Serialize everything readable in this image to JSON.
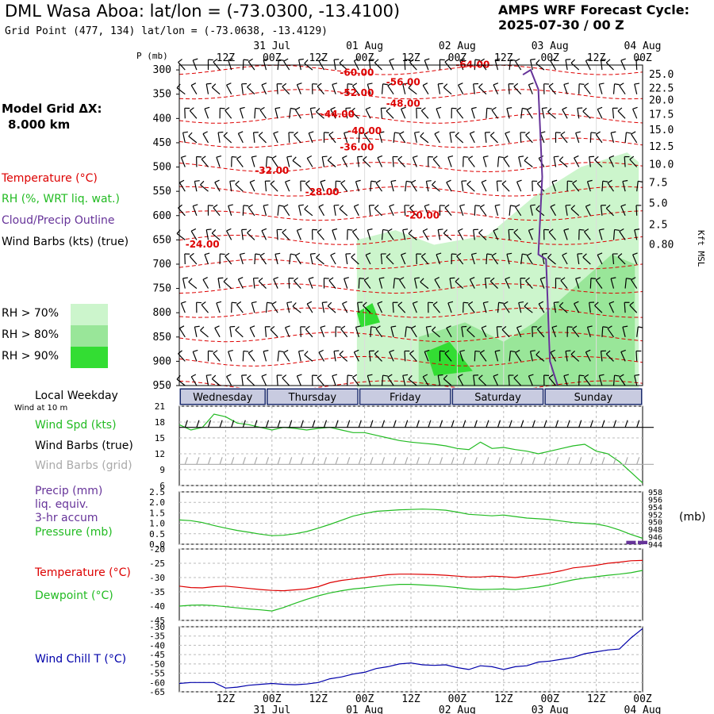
{
  "header": {
    "title": "DML Wasa Aboa:  lat/lon = (-73.0300, -13.4100)",
    "grid_point": "Grid Point (477, 134) lat/lon = (-73.0638, -13.4129)",
    "cycle_line1": "AMPS WRF Forecast Cycle:",
    "cycle_line2": "2025-07-30 / 00  Z"
  },
  "sidebar": {
    "model_grid_label": "Model Grid ΔX:",
    "model_grid_value": "8.000 km",
    "legend_temperature": "Temperature (°C)",
    "legend_rh": "RH (%, WRT liq. wat.)",
    "legend_cloud": "Cloud/Precip Outline",
    "legend_wind": "Wind Barbs (kts) (true)",
    "rh_levels": [
      {
        "label": "RH > 70%",
        "color": "#ccf5cc"
      },
      {
        "label": "RH > 80%",
        "color": "#99e699"
      },
      {
        "label": "RH > 90%",
        "color": "#33dd33"
      }
    ],
    "local_weekday": "Local Weekday",
    "wind_at_10m": "Wind at 10 m",
    "wind_spd_label": "Wind Spd (kts)",
    "wind_barbs_true": "Wind Barbs (true)",
    "wind_barbs_grid": "Wind Barbs (grid)",
    "precip_l1": "Precip (mm)",
    "precip_l2": "liq. equiv.",
    "precip_l3": "3-hr accum",
    "pressure_label": "Pressure (mb)",
    "pressure_unit": "(mb)",
    "temperature_label": "Temperature (°C)",
    "dewpoint_label": "Dewpoint (°C)",
    "wind_chill_label": "Wind Chill T (°C)"
  },
  "colors": {
    "temperature": "#dd0000",
    "rh": "#22bb22",
    "cloud": "#663399",
    "wind_chill": "#0000aa",
    "grid_barbs": "#aaaaaa",
    "weekday_bar": "#1a2a6c"
  },
  "chart_data": [
    {
      "type": "heatmap",
      "title": "Time-height cross section",
      "ylabel": "P (mb)",
      "y2label": "Kft MSL",
      "x_hours": [
        0,
        120
      ],
      "x_top_ticks": [
        "12Z",
        "00Z",
        "12Z",
        "00Z",
        "12Z",
        "00Z",
        "12Z",
        "00Z",
        "12Z",
        "00Z"
      ],
      "x_top_dates": [
        {
          "label": "31 Jul",
          "hour": 24
        },
        {
          "label": "01 Aug",
          "hour": 48
        },
        {
          "label": "02 Aug",
          "hour": 72
        },
        {
          "label": "03 Aug",
          "hour": 96
        },
        {
          "label": "04 Aug",
          "hour": 120
        }
      ],
      "pressure_levels": [
        300,
        350,
        400,
        450,
        500,
        550,
        600,
        650,
        700,
        750,
        800,
        850,
        900,
        950
      ],
      "ylim": [
        950,
        290
      ],
      "height_kft": [
        {
          "label": "25.0",
          "p": 310
        },
        {
          "label": "22.5",
          "p": 338
        },
        {
          "label": "20.0",
          "p": 363
        },
        {
          "label": "17.5",
          "p": 392
        },
        {
          "label": "15.0",
          "p": 424
        },
        {
          "label": "12.5",
          "p": 458
        },
        {
          "label": "10.0",
          "p": 495
        },
        {
          "label": "7.5",
          "p": 533
        },
        {
          "label": "5.0",
          "p": 575
        },
        {
          "label": "2.5",
          "p": 619
        },
        {
          "label": "0.80",
          "p": 660
        }
      ],
      "temperature_contours": [
        {
          "label": "-64.00",
          "hour": 76.0,
          "p": 296
        },
        {
          "label": "-60.00",
          "hour": 46.0,
          "p": 312
        },
        {
          "label": "-56.00",
          "hour": 58.0,
          "p": 332
        },
        {
          "label": "-52.00",
          "hour": 46.0,
          "p": 354
        },
        {
          "label": "-48.00",
          "hour": 58.0,
          "p": 376
        },
        {
          "label": "-44.00",
          "hour": 41.0,
          "p": 398
        },
        {
          "label": "-40.00",
          "hour": 48.0,
          "p": 432
        },
        {
          "label": "-36.00",
          "hour": 46.0,
          "p": 466
        },
        {
          "label": "-32.00",
          "hour": 24.0,
          "p": 514
        },
        {
          "label": "-28.00",
          "hour": 37.0,
          "p": 558
        },
        {
          "label": "-20.00",
          "hour": 63.0,
          "p": 606
        },
        {
          "label": "-24.00",
          "hour": 6.0,
          "p": 666
        }
      ],
      "rh_regions": [
        {
          "level": 70,
          "points": [
            [
              46,
              650
            ],
            [
              56,
              630
            ],
            [
              66,
              660
            ],
            [
              80,
              640
            ],
            [
              92,
              560
            ],
            [
              104,
              500
            ],
            [
              116,
              470
            ],
            [
              119,
              490
            ],
            [
              119,
              955
            ],
            [
              46,
              955
            ]
          ]
        },
        {
          "level": 80,
          "points": [
            [
              62,
              850
            ],
            [
              74,
              820
            ],
            [
              84,
              860
            ],
            [
              92,
              820
            ],
            [
              102,
              750
            ],
            [
              112,
              680
            ],
            [
              118,
              700
            ],
            [
              118,
              950
            ],
            [
              62,
              950
            ]
          ]
        },
        {
          "level": 90,
          "points": [
            [
              64,
              880
            ],
            [
              70,
              860
            ],
            [
              76,
              920
            ],
            [
              66,
              930
            ]
          ]
        },
        {
          "level": 90,
          "points": [
            [
              46,
              800
            ],
            [
              50,
              780
            ],
            [
              52,
              820
            ],
            [
              47,
              830
            ]
          ]
        }
      ],
      "cloud_outline": [
        [
          89,
          310
        ],
        [
          91,
          300
        ],
        [
          93,
          340
        ],
        [
          94,
          520
        ],
        [
          93,
          680
        ],
        [
          95,
          690
        ],
        [
          96,
          900
        ],
        [
          98,
          950
        ]
      ]
    },
    {
      "type": "line",
      "title": "Wind Spd (kts)",
      "ylim": [
        6,
        21
      ],
      "y_ticks": [
        6,
        9,
        12,
        15,
        18,
        21
      ],
      "x_hours": [
        0,
        3,
        6,
        9,
        12,
        15,
        18,
        21,
        24,
        27,
        30,
        33,
        36,
        39,
        42,
        45,
        48,
        51,
        54,
        57,
        60,
        63,
        66,
        69,
        72,
        75,
        78,
        81,
        84,
        87,
        90,
        93,
        96,
        99,
        102,
        105,
        108,
        111,
        114,
        117,
        120
      ],
      "series": [
        {
          "name": "Wind Spd (kts)",
          "color": "#22bb22",
          "values": [
            17.5,
            16.5,
            17.0,
            19.5,
            19.0,
            17.8,
            17.5,
            17.0,
            16.5,
            17.0,
            16.8,
            16.5,
            16.8,
            17.0,
            16.5,
            16.0,
            16.0,
            15.5,
            15.0,
            14.5,
            14.2,
            14.0,
            13.8,
            13.5,
            13.0,
            12.8,
            14.2,
            13.0,
            13.2,
            12.8,
            12.5,
            12.0,
            12.5,
            13.0,
            13.5,
            13.8,
            12.5,
            12.0,
            10.5,
            8.5,
            6.5
          ]
        }
      ]
    },
    {
      "type": "line",
      "title": "Precip / Pressure",
      "ylim": [
        0,
        2.5
      ],
      "y_ticks": [
        0.0,
        0.5,
        1.0,
        1.5,
        2.0,
        2.5
      ],
      "y2_ticks": [
        944,
        946,
        948,
        950,
        952,
        954,
        956,
        958
      ],
      "x_hours": [
        0,
        3,
        6,
        9,
        12,
        15,
        18,
        21,
        24,
        27,
        30,
        33,
        36,
        39,
        42,
        45,
        48,
        51,
        54,
        57,
        60,
        63,
        66,
        69,
        72,
        75,
        78,
        81,
        84,
        87,
        90,
        93,
        96,
        99,
        102,
        105,
        108,
        111,
        114,
        117,
        120
      ],
      "series": [
        {
          "name": "Pressure (mb)",
          "color": "#22bb22",
          "values": [
            950.5,
            950.3,
            949.8,
            949.0,
            948.3,
            947.7,
            947.2,
            946.7,
            946.3,
            946.4,
            946.8,
            947.4,
            948.3,
            949.3,
            950.4,
            951.5,
            952.2,
            952.8,
            953.0,
            953.2,
            953.3,
            953.4,
            953.3,
            953.1,
            952.6,
            952.0,
            951.8,
            951.6,
            951.8,
            951.4,
            951.0,
            950.8,
            950.6,
            950.2,
            949.8,
            949.6,
            949.4,
            948.8,
            947.8,
            946.6,
            945.6
          ]
        },
        {
          "name": "Precip (mm)",
          "color": "#663399",
          "values": [
            0,
            0,
            0,
            0,
            0,
            0,
            0,
            0,
            0,
            0,
            0,
            0,
            0,
            0,
            0,
            0,
            0,
            0,
            0,
            0,
            0,
            0,
            0,
            0,
            0,
            0,
            0,
            0,
            0,
            0,
            0,
            0,
            0,
            0,
            0,
            0,
            0,
            0,
            0,
            0.05,
            0.05
          ]
        }
      ]
    },
    {
      "type": "line",
      "title": "Temperature / Dewpoint",
      "ylim": [
        -45,
        -20
      ],
      "y_ticks": [
        -45,
        -40,
        -35,
        -30,
        -25,
        -20
      ],
      "x_hours": [
        0,
        3,
        6,
        9,
        12,
        15,
        18,
        21,
        24,
        27,
        30,
        33,
        36,
        39,
        42,
        45,
        48,
        51,
        54,
        57,
        60,
        63,
        66,
        69,
        72,
        75,
        78,
        81,
        84,
        87,
        90,
        93,
        96,
        99,
        102,
        105,
        108,
        111,
        114,
        117,
        120
      ],
      "series": [
        {
          "name": "Temperature (°C)",
          "color": "#dd0000",
          "values": [
            -33.0,
            -33.5,
            -33.6,
            -33.2,
            -33.0,
            -33.4,
            -33.8,
            -34.2,
            -34.5,
            -34.6,
            -34.3,
            -34.0,
            -33.2,
            -31.8,
            -31.0,
            -30.5,
            -30.0,
            -29.5,
            -29.0,
            -28.8,
            -28.8,
            -28.9,
            -29.0,
            -29.2,
            -29.5,
            -29.8,
            -29.8,
            -29.5,
            -29.7,
            -30.0,
            -29.5,
            -29.0,
            -28.4,
            -27.6,
            -26.6,
            -26.2,
            -25.7,
            -25.0,
            -24.6,
            -24.1,
            -24.0
          ]
        },
        {
          "name": "Dewpoint (°C)",
          "color": "#22bb22",
          "values": [
            -40.0,
            -39.7,
            -39.6,
            -39.8,
            -40.2,
            -40.6,
            -41.0,
            -41.3,
            -41.7,
            -40.5,
            -39.0,
            -37.6,
            -36.4,
            -35.4,
            -34.6,
            -34.0,
            -33.6,
            -33.1,
            -32.7,
            -32.4,
            -32.4,
            -32.6,
            -32.8,
            -33.1,
            -33.5,
            -34.0,
            -34.2,
            -34.1,
            -34.0,
            -34.2,
            -33.8,
            -33.3,
            -32.6,
            -31.7,
            -30.8,
            -30.2,
            -29.7,
            -29.2,
            -28.8,
            -28.3,
            -27.5
          ]
        }
      ]
    },
    {
      "type": "line",
      "title": "Wind Chill T (°C)",
      "ylim": [
        -65,
        -30
      ],
      "y_ticks": [
        -65,
        -60,
        -55,
        -50,
        -45,
        -40,
        -35,
        -30
      ],
      "x_hours": [
        0,
        3,
        6,
        9,
        12,
        15,
        18,
        21,
        24,
        27,
        30,
        33,
        36,
        39,
        42,
        45,
        48,
        51,
        54,
        57,
        60,
        63,
        66,
        69,
        72,
        75,
        78,
        81,
        84,
        87,
        90,
        93,
        96,
        99,
        102,
        105,
        108,
        111,
        114,
        117,
        120
      ],
      "series": [
        {
          "name": "Wind Chill T (°C)",
          "color": "#0000aa",
          "values": [
            -60.5,
            -60.0,
            -60.0,
            -60.0,
            -63.0,
            -62.5,
            -61.5,
            -61.0,
            -60.5,
            -61.0,
            -61.2,
            -60.8,
            -60.0,
            -58.0,
            -57.0,
            -55.5,
            -54.5,
            -52.5,
            -51.5,
            -50.0,
            -49.5,
            -50.5,
            -50.8,
            -50.5,
            -52.0,
            -53.0,
            -51.0,
            -51.5,
            -53.0,
            -51.5,
            -51.0,
            -49.0,
            -48.5,
            -47.5,
            -46.5,
            -44.5,
            -43.5,
            -42.5,
            -42.0,
            -36.0,
            -31.0
          ]
        }
      ]
    }
  ],
  "weekdays": [
    {
      "label": "Wednesday",
      "start": 0,
      "end": 22.5
    },
    {
      "label": "Thursday",
      "start": 22.5,
      "end": 46.5
    },
    {
      "label": "Friday",
      "start": 46.5,
      "end": 70.5
    },
    {
      "label": "Saturday",
      "start": 70.5,
      "end": 94.5
    },
    {
      "label": "Sunday",
      "start": 94.5,
      "end": 120
    }
  ],
  "bottom_axis": {
    "times": [
      "12Z",
      "00Z",
      "12Z",
      "00Z",
      "12Z",
      "00Z",
      "12Z",
      "00Z",
      "12Z",
      "00Z"
    ],
    "dates": [
      {
        "label": "31 Jul",
        "hour": 24
      },
      {
        "label": "01 Aug",
        "hour": 48
      },
      {
        "label": "02 Aug",
        "hour": 72
      },
      {
        "label": "03 Aug",
        "hour": 96
      },
      {
        "label": "04 Aug",
        "hour": 120
      }
    ]
  }
}
